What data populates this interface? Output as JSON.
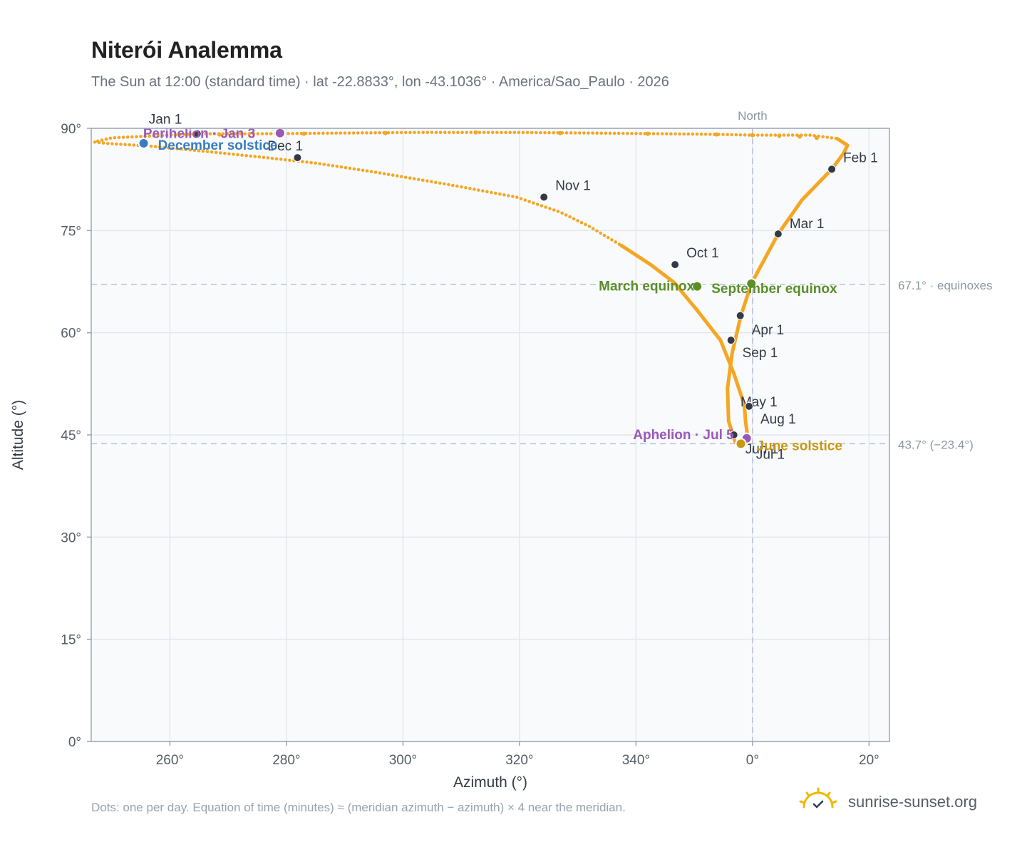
{
  "title": "Niterói Analemma",
  "subtitle": "The Sun at 12:00 (standard time) · lat -22.8833°, lon -43.1036° · America/Sao_Paulo · 2026",
  "footnote": "Dots: one per day. Equation of time (minutes) ≈ (meridian azimuth − azimuth) × 4 near the meridian.",
  "brand": {
    "text": "sunrise-sunset.org",
    "icon": "sun-logo-icon"
  },
  "colors": {
    "path": "#f5a623",
    "month_marker": "#333a44",
    "perihelion": "#9b59b6",
    "aphelion": "#9b59b6",
    "equinox": "#5a8f29",
    "june_solstice": "#c99712",
    "december_solstice": "#3a7cc0",
    "plot_bg": "#f8fafc",
    "grid": "#e3e8ee",
    "reference_line": "#b7c3d0"
  },
  "chart_data": {
    "type": "scatter",
    "xlabel": "Azimuth (°)",
    "ylabel": "Altitude (°)",
    "xlim": [
      -113.5,
      23.5
    ],
    "ylim": [
      0,
      90
    ],
    "x_ticks": [
      {
        "value": -100,
        "label": "260°"
      },
      {
        "value": -80,
        "label": "280°"
      },
      {
        "value": -60,
        "label": "300°"
      },
      {
        "value": -40,
        "label": "320°"
      },
      {
        "value": -20,
        "label": "340°"
      },
      {
        "value": 0,
        "label": "0°"
      },
      {
        "value": 20,
        "label": "20°"
      }
    ],
    "y_ticks": [
      {
        "value": 0,
        "label": "0°"
      },
      {
        "value": 15,
        "label": "15°"
      },
      {
        "value": 30,
        "label": "30°"
      },
      {
        "value": 45,
        "label": "45°"
      },
      {
        "value": 60,
        "label": "60°"
      },
      {
        "value": 75,
        "label": "75°"
      },
      {
        "value": 90,
        "label": "90°"
      }
    ],
    "grid": true,
    "north_line": {
      "azimuth": 0,
      "label": "North"
    },
    "reference_lines": [
      {
        "altitude": 67.1,
        "label": "67.1° · equinoxes"
      },
      {
        "altitude": 43.7,
        "label": "43.7° (−23.4°)"
      }
    ],
    "path_points": [
      [
        -95.3,
        89.2
      ],
      [
        -110.0,
        88.6
      ],
      [
        -113.0,
        88.0
      ],
      [
        -111.0,
        87.8
      ],
      [
        -103.5,
        87.4
      ],
      [
        -92.5,
        86.5
      ],
      [
        -83.5,
        85.7
      ],
      [
        -75.0,
        84.9
      ],
      [
        -65.0,
        83.6
      ],
      [
        -52.5,
        81.8
      ],
      [
        -40.5,
        79.9
      ],
      [
        -33.0,
        77.7
      ],
      [
        -28.0,
        75.6
      ],
      [
        -22.5,
        72.8
      ],
      [
        -17.5,
        70.0
      ],
      [
        -13.5,
        67.4
      ],
      [
        -9.7,
        63.5
      ],
      [
        -5.5,
        58.9
      ],
      [
        -3.2,
        54.0
      ],
      [
        -1.4,
        49.4
      ],
      [
        -1.2,
        47.0
      ],
      [
        -0.8,
        44.5
      ],
      [
        -1.5,
        43.7
      ],
      [
        -3.0,
        44.0
      ],
      [
        -4.1,
        47.0
      ],
      [
        -4.3,
        51.8
      ],
      [
        -3.5,
        57.0
      ],
      [
        -2.0,
        62.5
      ],
      [
        -0.2,
        67.2
      ],
      [
        2.5,
        71.5
      ],
      [
        4.4,
        74.5
      ],
      [
        8.5,
        79.5
      ],
      [
        13.6,
        84.0
      ],
      [
        15.6,
        86.3
      ],
      [
        16.3,
        87.5
      ],
      [
        14.5,
        88.5
      ],
      [
        10.0,
        89.0
      ],
      [
        4.5,
        89.0
      ],
      [
        0.0,
        89.0
      ],
      [
        -5.0,
        89.1
      ],
      [
        -15.0,
        89.2
      ],
      [
        -27.0,
        89.3
      ],
      [
        -41.5,
        89.4
      ],
      [
        -57.0,
        89.4
      ],
      [
        -71.0,
        89.3
      ],
      [
        -85.0,
        89.2
      ],
      [
        -95.3,
        89.2
      ]
    ],
    "sparse_dots": [
      [
        -91.5,
        89.1
      ],
      [
        -77.0,
        89.2
      ],
      [
        -63.0,
        89.3
      ],
      [
        -47.5,
        89.4
      ],
      [
        -33.0,
        89.3
      ],
      [
        -18.0,
        89.2
      ],
      [
        -6.2,
        89.1
      ],
      [
        0.0,
        89.0
      ],
      [
        4.6,
        88.9
      ],
      [
        8.1,
        88.8
      ],
      [
        11.0,
        88.6
      ]
    ],
    "month_markers": [
      {
        "label": "Jan 1",
        "azimuth": -95.3,
        "altitude": 89.2
      },
      {
        "label": "Feb 1",
        "azimuth": 13.6,
        "altitude": 84.0
      },
      {
        "label": "Mar 1",
        "azimuth": 4.4,
        "altitude": 74.5
      },
      {
        "label": "Apr 1",
        "azimuth": -2.1,
        "altitude": 62.5
      },
      {
        "label": "May 1",
        "azimuth": -0.6,
        "altitude": 49.2
      },
      {
        "label": "Jun 1",
        "azimuth": -3.2,
        "altitude": 45.0
      },
      {
        "label": "Jul 1",
        "azimuth": -1.1,
        "altitude": 44.4
      },
      {
        "label": "Aug 1",
        "azimuth": -0.6,
        "altitude": 49.2
      },
      {
        "label": "Sep 1",
        "azimuth": -3.7,
        "altitude": 58.9
      },
      {
        "label": "Oct 1",
        "azimuth": -13.3,
        "altitude": 70.0
      },
      {
        "label": "Nov 1",
        "azimuth": -35.8,
        "altitude": 79.9
      },
      {
        "label": "Dec 1",
        "azimuth": -78.1,
        "altitude": 85.7
      }
    ],
    "events": [
      {
        "label": "Perihelion · Jan 3",
        "azimuth": -81.1,
        "altitude": 89.3,
        "kind": "perihelion"
      },
      {
        "label": "Aphelion · Jul 5",
        "azimuth": -1.0,
        "altitude": 44.5,
        "kind": "aphelion"
      },
      {
        "label": "March equinox",
        "azimuth": -9.5,
        "altitude": 66.8,
        "kind": "equinox"
      },
      {
        "label": "September equinox",
        "azimuth": -0.2,
        "altitude": 67.2,
        "kind": "equinox"
      },
      {
        "label": "June solstice",
        "azimuth": -2.0,
        "altitude": 43.7,
        "kind": "june_solstice"
      },
      {
        "label": "December solstice",
        "azimuth": -104.5,
        "altitude": 87.8,
        "kind": "december_solstice"
      }
    ]
  }
}
